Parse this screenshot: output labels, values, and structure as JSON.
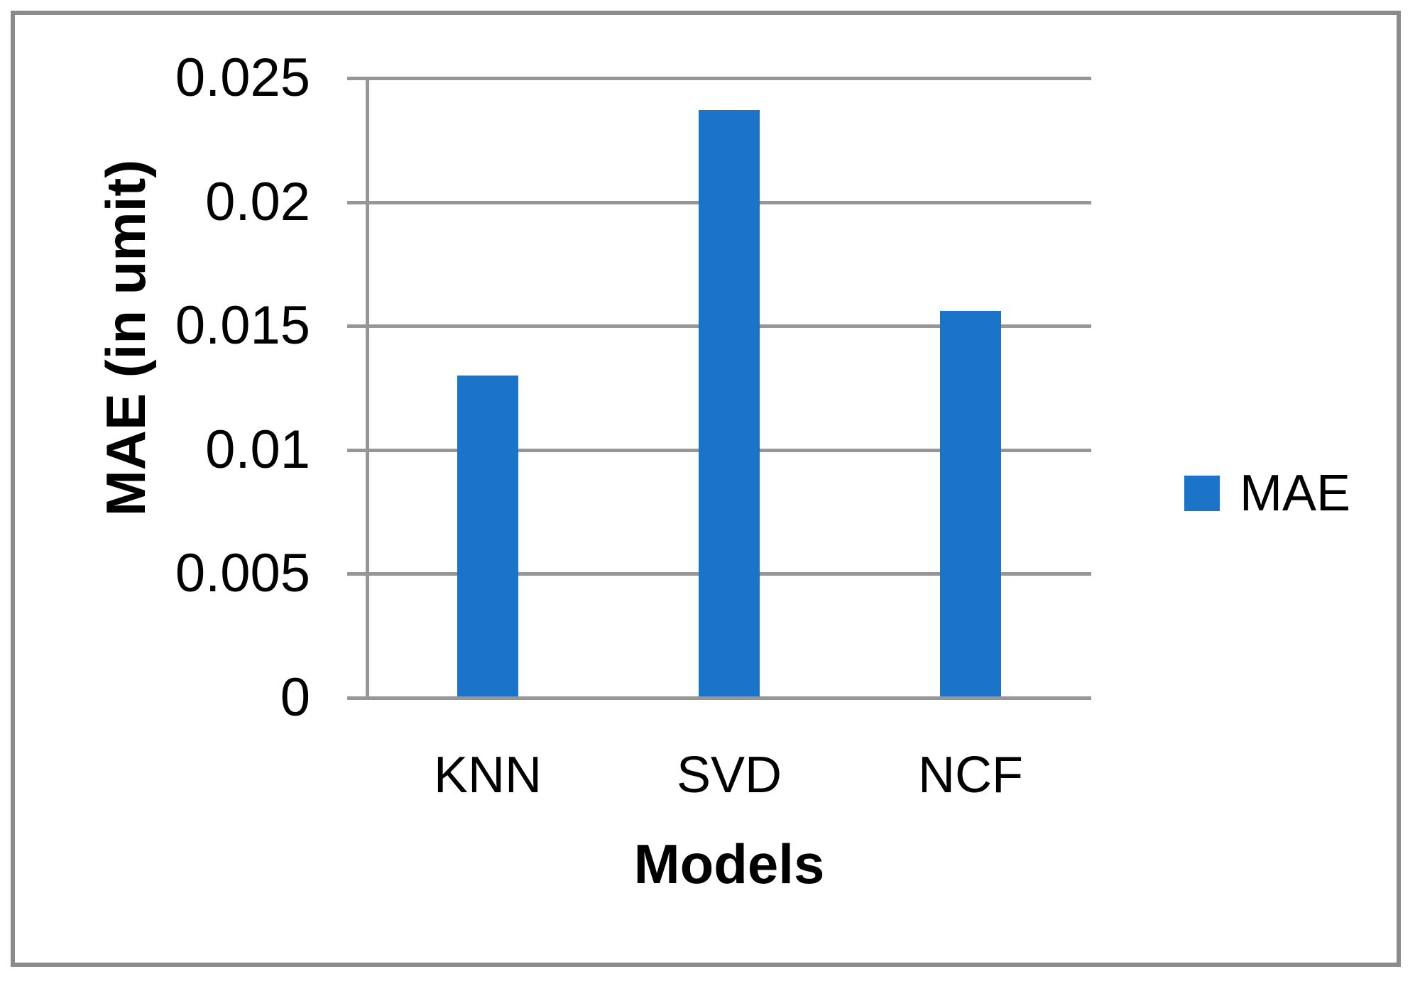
{
  "chart_data": {
    "type": "bar",
    "title": "",
    "categories": [
      "KNN",
      "SVD",
      "NCF"
    ],
    "series": [
      {
        "name": "MAE",
        "values": [
          0.013,
          0.0237,
          0.0156
        ]
      }
    ],
    "xlabel": "Models",
    "ylabel": "MAE (in umit)",
    "ylim": [
      0,
      0.025
    ],
    "yticks": [
      0,
      0.005,
      0.01,
      0.015,
      0.02,
      0.025
    ],
    "ytick_labels": [
      "0",
      "0.005",
      "0.01",
      "0.015",
      "0.02",
      "0.025"
    ],
    "grid": true,
    "legend": {
      "position": "right",
      "entries": [
        "MAE"
      ]
    }
  },
  "colors": {
    "bar": "#1B74C8",
    "grid": "#969696",
    "axis": "#969696",
    "frame_border": "#8B8B8B",
    "text": "#000000",
    "background": "#FFFFFF"
  }
}
